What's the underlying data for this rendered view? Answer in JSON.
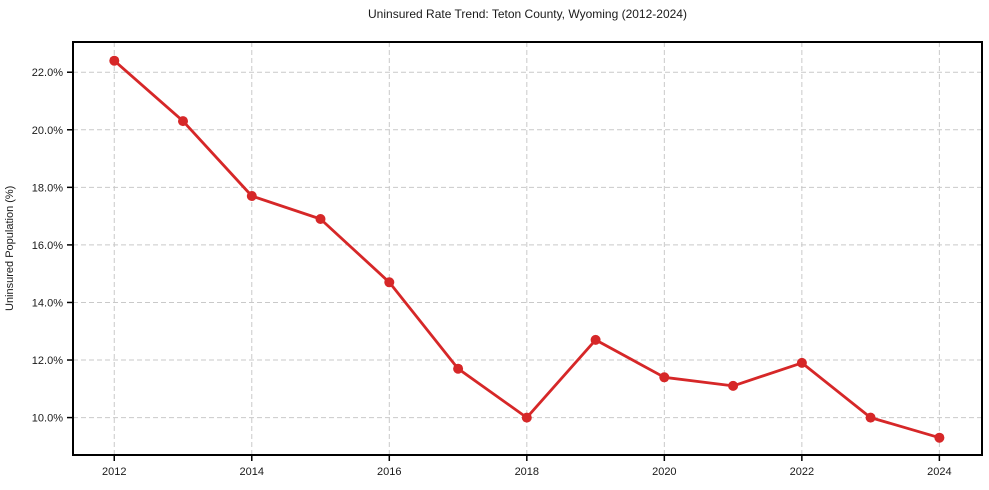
{
  "page": {
    "background_color": "#ffffff"
  },
  "chart_data": {
    "type": "line",
    "title": "Uninsured Rate Trend: Teton County, Wyoming (2012-2024)",
    "xlabel": "",
    "ylabel": "Uninsured Population (%)",
    "x": [
      2012,
      2013,
      2014,
      2015,
      2016,
      2017,
      2018,
      2019,
      2020,
      2021,
      2022,
      2023,
      2024
    ],
    "values": [
      22.4,
      20.3,
      17.7,
      16.9,
      14.7,
      11.7,
      10.0,
      12.7,
      11.4,
      11.1,
      11.9,
      10.0,
      9.3
    ],
    "xlim": [
      2011.4,
      2024.62
    ],
    "ylim": [
      8.7,
      23.05
    ],
    "x_ticks": {
      "values": [
        2012,
        2014,
        2016,
        2018,
        2020,
        2022,
        2024
      ],
      "labels": [
        "2012",
        "2014",
        "2016",
        "2018",
        "2020",
        "2022",
        "2024"
      ]
    },
    "y_ticks": {
      "values": [
        10,
        12,
        14,
        16,
        18,
        20,
        22
      ],
      "labels": [
        "10.0%",
        "12.0%",
        "14.0%",
        "16.0%",
        "18.0%",
        "20.0%",
        "22.0%"
      ]
    },
    "grid": true,
    "grid_style": "dashed",
    "legend": "none",
    "marker": "circle",
    "colors": {
      "line": "#d62728",
      "marker": "#d62728",
      "grid": "#c9c9c9",
      "spine": "#000000",
      "tick": "#000000",
      "text": "#1a1a1a",
      "background": "#ffffff"
    }
  }
}
